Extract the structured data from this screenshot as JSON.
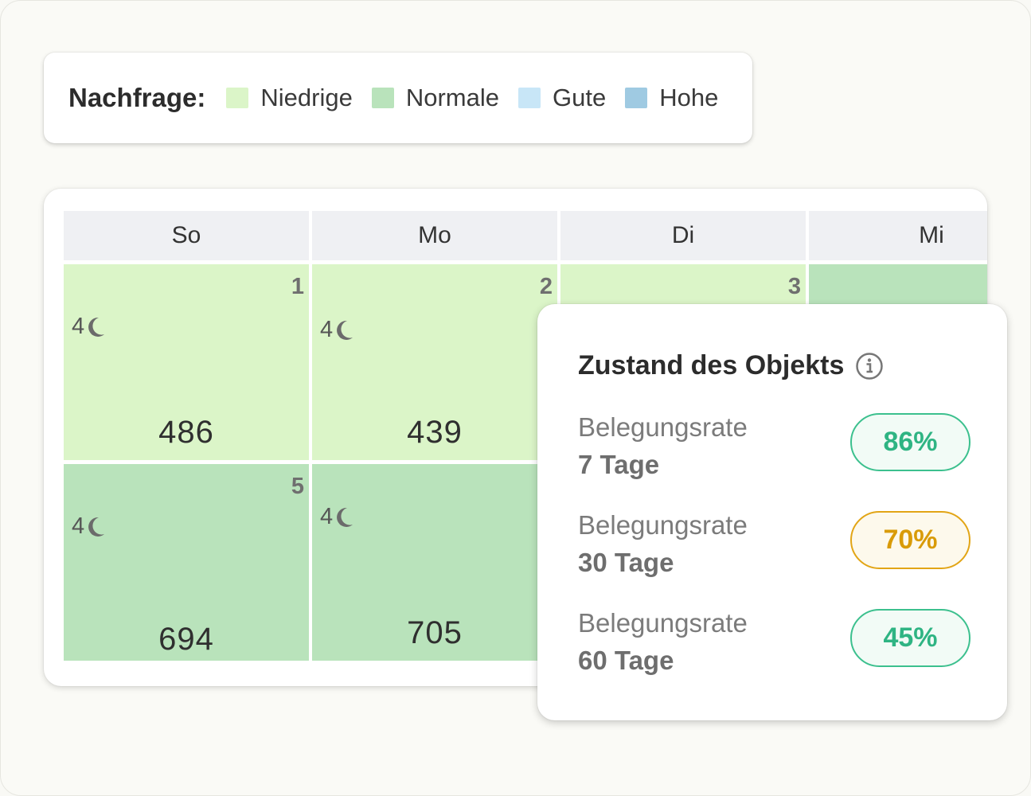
{
  "legend": {
    "title": "Nachfrage:",
    "items": [
      {
        "label": "Niedrige",
        "color": "#dbf5c8"
      },
      {
        "label": "Normale",
        "color": "#b9e3bb"
      },
      {
        "label": "Gute",
        "color": "#c8e6f7"
      },
      {
        "label": "Hohe",
        "color": "#9fcae2"
      }
    ]
  },
  "calendar": {
    "weekdays": [
      "So",
      "Mo",
      "Di",
      "Mi"
    ],
    "cells": [
      {
        "day": "1",
        "nights": "4",
        "price": "486",
        "demand": "Niedrige"
      },
      {
        "day": "2",
        "nights": "4",
        "price": "439",
        "demand": "Niedrige"
      },
      {
        "day": "3",
        "demand": "Niedrige"
      },
      {
        "demand": "Normale"
      },
      {
        "day": "5",
        "nights": "4",
        "price": "694",
        "demand": "Normale"
      },
      {
        "nights": "4",
        "price": "705",
        "demand": "Normale"
      }
    ]
  },
  "popup": {
    "title": "Zustand des Objekts",
    "info_icon": "info-icon",
    "rates": [
      {
        "label": "Belegungsrate",
        "period": "7 Tage",
        "value": "86%",
        "color": "#3cc08e",
        "fill": "#f2fbf6"
      },
      {
        "label": "Belegungsrate",
        "period": "30 Tage",
        "value": "70%",
        "color": "#e2a516",
        "fill": "#fdf9ec"
      },
      {
        "label": "Belegungsrate",
        "period": "60 Tage",
        "value": "45%",
        "color": "#3cc08e",
        "fill": "#f2fbf6"
      }
    ]
  }
}
